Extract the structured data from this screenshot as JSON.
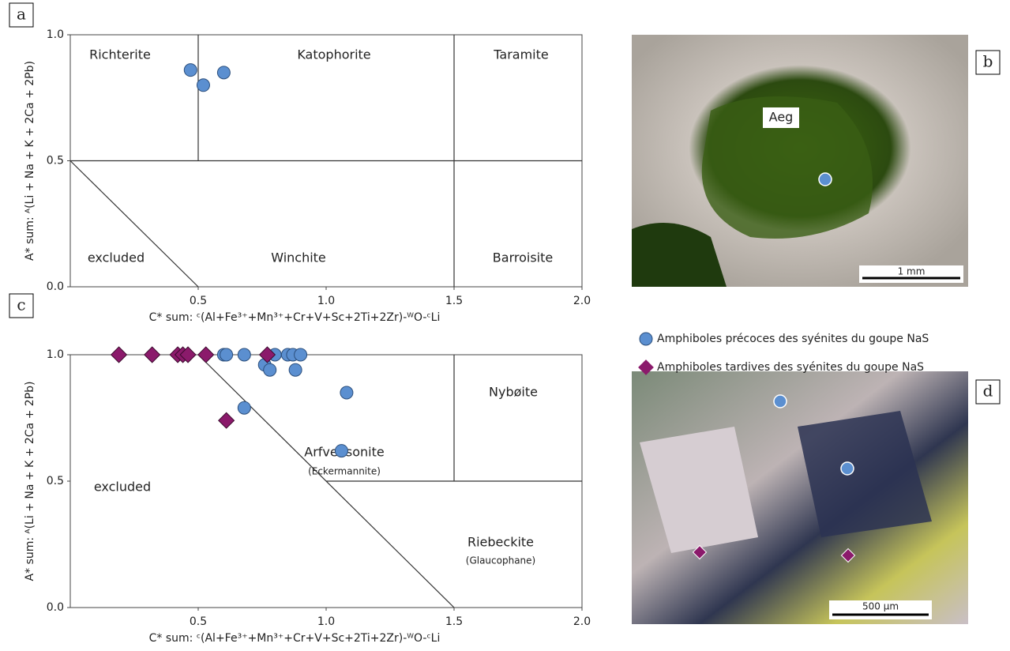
{
  "chart_data": [
    {
      "type": "scatter",
      "panel": "a",
      "xlabel": "C* sum: ᶜ(Al+Fe³⁺+Mn³⁺+Cr+V+Sc+2Ti+2Zr)-ᵂO-ᶜLi",
      "ylabel": "A* sum: ᴬ(Li + Na + K + 2Ca + 2Pb)",
      "xlim": [
        0,
        2
      ],
      "ylim": [
        0,
        1
      ],
      "xticks": [
        0.5,
        {
          "value": 1,
          "label": "1.0"
        },
        1.5,
        {
          "value": 2,
          "label": "2.0"
        }
      ],
      "yticks": [
        {
          "value": 0,
          "label": "0.0"
        },
        0.5,
        {
          "value": 1,
          "label": "1.0"
        }
      ],
      "annotations": [
        "Richterite",
        "Katophorite",
        "Taramite",
        "excluded",
        "Winchite",
        "Barroisite"
      ],
      "series": [
        {
          "color": "#5b8fd0",
          "marker": "circle",
          "x": [
            0.47,
            0.52,
            0.6
          ],
          "values": [
            0.86,
            0.8,
            0.85
          ]
        }
      ]
    },
    {
      "type": "scatter",
      "panel": "c",
      "xlabel": "C* sum: ᶜ(Al+Fe³⁺+Mn³⁺+Cr+V+Sc+2Ti+2Zr)-ᵂO-ᶜLi",
      "ylabel": "A* sum: ᴬ(Li + Na + K + 2Ca + 2Pb)",
      "xlim": [
        0,
        2
      ],
      "ylim": [
        0,
        1
      ],
      "xticks": [
        0.5,
        {
          "value": 1,
          "label": "1.0"
        },
        1.5,
        {
          "value": 2,
          "label": "2.0"
        }
      ],
      "yticks": [
        {
          "value": 0,
          "label": "0.0"
        },
        0.5,
        {
          "value": 1,
          "label": "1.0"
        }
      ],
      "annotations": [
        "Nybøite",
        "Arfvedsonite",
        "(Eckermannite)",
        "excluded",
        "Riebeckite",
        "(Glaucophane)"
      ],
      "series": [
        {
          "name": "Amphiboles précoces des syénites du goupe NaS",
          "color": "#5b8fd0",
          "marker": "circle",
          "x": [
            0.6,
            0.61,
            0.68,
            0.76,
            0.78,
            0.8,
            0.85,
            0.87,
            0.88,
            0.9,
            0.68,
            1.08,
            1.06
          ],
          "values": [
            1,
            1,
            1,
            0.96,
            0.94,
            1,
            1,
            1,
            0.94,
            1,
            0.79,
            0.85,
            0.62
          ]
        },
        {
          "name": "Amphiboles tardives des syénites du goupe NaS",
          "color": "#8b1a6b",
          "marker": "diamond",
          "x": [
            0.19,
            0.32,
            0.42,
            0.44,
            0.46,
            0.53,
            0.77,
            0.61
          ],
          "values": [
            1,
            1,
            1,
            1,
            1,
            1,
            1,
            0.74
          ]
        }
      ]
    }
  ],
  "photos": [
    {
      "panel": "b",
      "label": "Aeg",
      "scale": "1 mm"
    },
    {
      "panel": "d",
      "scale": "500 µm"
    }
  ]
}
